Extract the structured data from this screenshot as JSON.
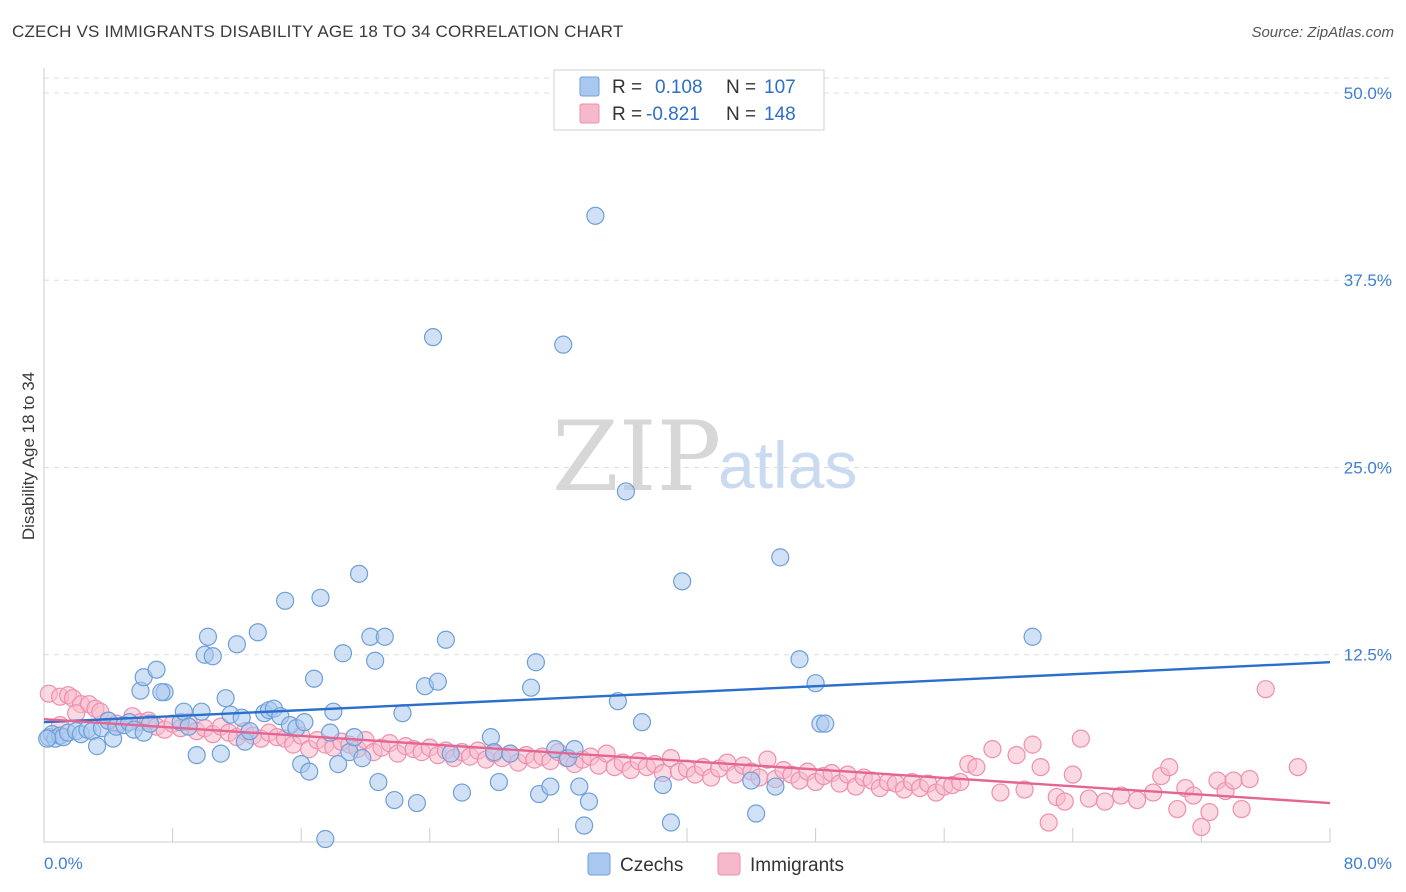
{
  "title": "CZECH VS IMMIGRANTS DISABILITY AGE 18 TO 34 CORRELATION CHART",
  "source": "Source: ZipAtlas.com",
  "watermark": {
    "zip": "ZIP",
    "atlas": "atlas"
  },
  "legend": {
    "czechs": {
      "r_label": "R =",
      "r_value": "0.108",
      "n_label": "N =",
      "n_value": "107"
    },
    "immigrants": {
      "r_label": "R =",
      "r_value": "-0.821",
      "n_label": "N =",
      "n_value": "148"
    }
  },
  "bottom_legend": {
    "czechs": "Czechs",
    "immigrants": "Immigrants"
  },
  "colors": {
    "czechs_fill": "#a9c8ef",
    "czechs_stroke": "#6f9fd8",
    "czechs_line": "#2a6fcc",
    "immigrants_fill": "#f6b9cc",
    "immigrants_stroke": "#ee8fae",
    "immigrants_line": "#e56592",
    "tick_text": "#3f7fd0",
    "grid": "#dddddd"
  },
  "chart_data": {
    "type": "scatter",
    "title": "CZECH VS IMMIGRANTS DISABILITY AGE 18 TO 34 CORRELATION CHART",
    "xlabel": "",
    "ylabel": "Disability Age 18 to 34",
    "xlim": [
      0,
      80
    ],
    "ylim": [
      0,
      51
    ],
    "x_tick_labels": [
      "0.0%",
      "80.0%"
    ],
    "y_ticks": [
      12.5,
      25.0,
      37.5,
      50.0
    ],
    "y_tick_labels": [
      "12.5%",
      "25.0%",
      "37.5%",
      "50.0%"
    ],
    "grid": "horizontal dashed",
    "legend_position": "top-center",
    "series": [
      {
        "name": "Czechs",
        "r": 0.108,
        "n": 107,
        "trend": {
          "x": [
            0,
            80
          ],
          "y": [
            8.0,
            12.0
          ]
        },
        "points": [
          [
            0.3,
            7.0
          ],
          [
            0.5,
            7.2
          ],
          [
            0.7,
            6.9
          ],
          [
            1.0,
            7.1
          ],
          [
            1.2,
            7.0
          ],
          [
            1.5,
            7.3
          ],
          [
            2.0,
            7.4
          ],
          [
            2.3,
            7.2
          ],
          [
            2.7,
            7.5
          ],
          [
            3.0,
            7.4
          ],
          [
            3.3,
            6.4
          ],
          [
            3.6,
            7.6
          ],
          [
            4.0,
            8.1
          ],
          [
            4.3,
            6.9
          ],
          [
            4.5,
            7.7
          ],
          [
            5.0,
            7.8
          ],
          [
            5.3,
            8.0
          ],
          [
            5.6,
            7.5
          ],
          [
            6.2,
            7.3
          ],
          [
            6.6,
            7.9
          ],
          [
            6.0,
            10.1
          ],
          [
            6.2,
            11.0
          ],
          [
            7.0,
            11.5
          ],
          [
            7.5,
            10.0
          ],
          [
            7.3,
            10.0
          ],
          [
            8.5,
            8.0
          ],
          [
            8.7,
            8.7
          ],
          [
            9.0,
            7.7
          ],
          [
            9.5,
            5.8
          ],
          [
            9.8,
            8.7
          ],
          [
            10.0,
            12.5
          ],
          [
            10.2,
            13.7
          ],
          [
            10.5,
            12.4
          ],
          [
            11.0,
            5.9
          ],
          [
            11.3,
            9.6
          ],
          [
            11.6,
            8.5
          ],
          [
            12.0,
            13.2
          ],
          [
            12.3,
            8.3
          ],
          [
            12.5,
            6.7
          ],
          [
            12.8,
            7.4
          ],
          [
            13.3,
            14.0
          ],
          [
            13.7,
            8.6
          ],
          [
            14.0,
            8.8
          ],
          [
            14.3,
            8.9
          ],
          [
            14.7,
            8.4
          ],
          [
            15.0,
            16.1
          ],
          [
            15.3,
            7.8
          ],
          [
            15.7,
            7.6
          ],
          [
            16.0,
            5.2
          ],
          [
            16.2,
            8.0
          ],
          [
            16.5,
            4.7
          ],
          [
            16.8,
            10.9
          ],
          [
            17.2,
            16.3
          ],
          [
            17.5,
            0.2
          ],
          [
            17.8,
            7.3
          ],
          [
            18.0,
            8.7
          ],
          [
            18.3,
            5.2
          ],
          [
            18.6,
            12.6
          ],
          [
            19.0,
            6.0
          ],
          [
            19.3,
            7.0
          ],
          [
            19.6,
            17.9
          ],
          [
            19.8,
            5.6
          ],
          [
            20.3,
            13.7
          ],
          [
            20.6,
            12.1
          ],
          [
            20.8,
            4.0
          ],
          [
            21.2,
            13.7
          ],
          [
            21.8,
            2.8
          ],
          [
            22.3,
            8.6
          ],
          [
            23.2,
            2.6
          ],
          [
            23.7,
            10.4
          ],
          [
            24.2,
            33.7
          ],
          [
            24.5,
            10.7
          ],
          [
            25.0,
            13.5
          ],
          [
            25.3,
            5.9
          ],
          [
            26.0,
            3.3
          ],
          [
            27.8,
            7.0
          ],
          [
            28.0,
            6.0
          ],
          [
            28.3,
            4.0
          ],
          [
            29.0,
            5.9
          ],
          [
            30.3,
            10.3
          ],
          [
            30.6,
            12.0
          ],
          [
            30.8,
            3.2
          ],
          [
            31.5,
            3.7
          ],
          [
            31.8,
            6.2
          ],
          [
            32.3,
            33.2
          ],
          [
            32.6,
            5.6
          ],
          [
            33.0,
            6.2
          ],
          [
            33.3,
            3.7
          ],
          [
            33.6,
            1.1
          ],
          [
            33.9,
            2.7
          ],
          [
            34.3,
            41.8
          ],
          [
            35.7,
            9.4
          ],
          [
            36.2,
            23.4
          ],
          [
            37.2,
            8.0
          ],
          [
            38.5,
            3.8
          ],
          [
            39.0,
            1.3
          ],
          [
            39.7,
            17.4
          ],
          [
            44.0,
            4.1
          ],
          [
            44.3,
            1.9
          ],
          [
            45.5,
            3.7
          ],
          [
            45.8,
            19.0
          ],
          [
            47.0,
            12.2
          ],
          [
            48.0,
            10.6
          ],
          [
            48.3,
            7.9
          ],
          [
            48.6,
            7.9
          ],
          [
            61.5,
            13.7
          ],
          [
            0.2,
            6.9
          ]
        ]
      },
      {
        "name": "Immigrants",
        "r": -0.821,
        "n": 148,
        "trend": {
          "x": [
            0,
            80
          ],
          "y": [
            8.2,
            2.6
          ]
        },
        "points": [
          [
            0.3,
            9.9
          ],
          [
            1.0,
            9.7
          ],
          [
            1.5,
            9.8
          ],
          [
            1.8,
            9.6
          ],
          [
            2.3,
            9.2
          ],
          [
            2.8,
            9.2
          ],
          [
            3.2,
            8.9
          ],
          [
            3.5,
            8.7
          ],
          [
            4.0,
            8.1
          ],
          [
            4.5,
            7.9
          ],
          [
            5.5,
            8.4
          ],
          [
            6.0,
            8.0
          ],
          [
            6.5,
            8.1
          ],
          [
            7.0,
            7.7
          ],
          [
            7.5,
            7.5
          ],
          [
            8.0,
            7.9
          ],
          [
            8.5,
            7.6
          ],
          [
            9.0,
            8.0
          ],
          [
            9.5,
            7.4
          ],
          [
            10.0,
            7.6
          ],
          [
            10.5,
            7.2
          ],
          [
            11.0,
            7.7
          ],
          [
            11.5,
            7.3
          ],
          [
            12.0,
            7.0
          ],
          [
            12.5,
            7.4
          ],
          [
            13.0,
            7.1
          ],
          [
            13.5,
            6.9
          ],
          [
            14.0,
            7.3
          ],
          [
            14.5,
            7.0
          ],
          [
            15.0,
            6.9
          ],
          [
            15.5,
            6.5
          ],
          [
            16.0,
            7.1
          ],
          [
            16.5,
            6.2
          ],
          [
            17.0,
            6.8
          ],
          [
            17.5,
            6.5
          ],
          [
            18.0,
            6.3
          ],
          [
            18.5,
            6.7
          ],
          [
            19.0,
            6.5
          ],
          [
            19.5,
            6.2
          ],
          [
            20.0,
            6.8
          ],
          [
            20.5,
            6.0
          ],
          [
            21.0,
            6.3
          ],
          [
            21.5,
            6.6
          ],
          [
            22.0,
            5.9
          ],
          [
            22.5,
            6.4
          ],
          [
            23.0,
            6.2
          ],
          [
            23.5,
            6.0
          ],
          [
            24.0,
            6.3
          ],
          [
            24.5,
            5.8
          ],
          [
            25.0,
            6.1
          ],
          [
            25.5,
            5.6
          ],
          [
            26.0,
            6.0
          ],
          [
            26.5,
            5.7
          ],
          [
            27.0,
            6.1
          ],
          [
            27.5,
            5.5
          ],
          [
            28.0,
            5.9
          ],
          [
            28.5,
            5.6
          ],
          [
            29.0,
            5.9
          ],
          [
            29.5,
            5.3
          ],
          [
            30.0,
            5.8
          ],
          [
            30.5,
            5.5
          ],
          [
            31.0,
            5.7
          ],
          [
            31.5,
            5.4
          ],
          [
            32.0,
            6.0
          ],
          [
            32.5,
            5.6
          ],
          [
            33.0,
            5.2
          ],
          [
            33.5,
            5.5
          ],
          [
            34.0,
            5.7
          ],
          [
            34.5,
            5.1
          ],
          [
            35.0,
            5.9
          ],
          [
            35.5,
            5.0
          ],
          [
            36.0,
            5.3
          ],
          [
            36.5,
            4.8
          ],
          [
            37.0,
            5.4
          ],
          [
            37.5,
            5.0
          ],
          [
            38.0,
            5.2
          ],
          [
            38.5,
            4.6
          ],
          [
            39.0,
            5.6
          ],
          [
            39.5,
            4.7
          ],
          [
            40.0,
            4.9
          ],
          [
            40.5,
            4.5
          ],
          [
            41.0,
            5.0
          ],
          [
            41.5,
            4.3
          ],
          [
            42.0,
            4.9
          ],
          [
            42.5,
            5.3
          ],
          [
            43.0,
            4.5
          ],
          [
            43.5,
            5.1
          ],
          [
            44.0,
            4.7
          ],
          [
            44.5,
            4.3
          ],
          [
            45.0,
            5.5
          ],
          [
            45.5,
            4.2
          ],
          [
            46.0,
            4.8
          ],
          [
            46.5,
            4.5
          ],
          [
            47.0,
            4.1
          ],
          [
            47.5,
            4.7
          ],
          [
            48.0,
            4.0
          ],
          [
            48.5,
            4.4
          ],
          [
            49.0,
            4.6
          ],
          [
            49.5,
            3.9
          ],
          [
            50.0,
            4.5
          ],
          [
            50.5,
            3.7
          ],
          [
            51.0,
            4.3
          ],
          [
            51.5,
            4.1
          ],
          [
            52.0,
            3.6
          ],
          [
            52.5,
            4.0
          ],
          [
            53.0,
            3.9
          ],
          [
            53.5,
            3.5
          ],
          [
            54.0,
            4.0
          ],
          [
            54.5,
            3.6
          ],
          [
            55.0,
            3.9
          ],
          [
            55.5,
            3.3
          ],
          [
            56.0,
            3.7
          ],
          [
            56.5,
            3.8
          ],
          [
            57.0,
            4.0
          ],
          [
            57.5,
            5.2
          ],
          [
            58.0,
            5.0
          ],
          [
            59.0,
            6.2
          ],
          [
            59.5,
            3.3
          ],
          [
            60.5,
            5.8
          ],
          [
            61.0,
            3.5
          ],
          [
            61.5,
            6.5
          ],
          [
            62.0,
            5.0
          ],
          [
            62.5,
            1.3
          ],
          [
            63.0,
            3.0
          ],
          [
            63.5,
            2.7
          ],
          [
            64.0,
            4.5
          ],
          [
            64.5,
            6.9
          ],
          [
            65.0,
            2.9
          ],
          [
            66.0,
            2.7
          ],
          [
            67.0,
            3.1
          ],
          [
            68.0,
            2.8
          ],
          [
            69.0,
            3.3
          ],
          [
            69.5,
            4.4
          ],
          [
            70.0,
            5.0
          ],
          [
            70.5,
            2.2
          ],
          [
            71.0,
            3.6
          ],
          [
            71.5,
            3.1
          ],
          [
            72.0,
            1.0
          ],
          [
            72.5,
            2.0
          ],
          [
            73.0,
            4.1
          ],
          [
            73.5,
            3.4
          ],
          [
            74.0,
            4.1
          ],
          [
            74.5,
            2.2
          ],
          [
            75.0,
            4.2
          ],
          [
            76.0,
            10.2
          ],
          [
            78.0,
            5.0
          ],
          [
            1.0,
            7.8
          ],
          [
            2.0,
            8.6
          ]
        ]
      }
    ]
  }
}
